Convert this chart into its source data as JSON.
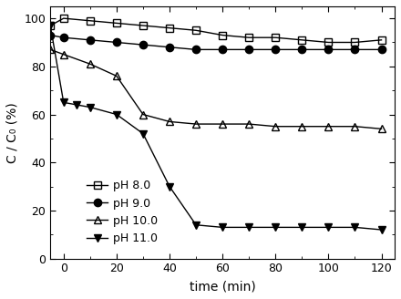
{
  "title": "",
  "xlabel": "time (min)",
  "ylabel": "C / C₀ (%)",
  "xlim": [
    -5,
    125
  ],
  "ylim": [
    0,
    105
  ],
  "xticks": [
    0,
    20,
    40,
    60,
    80,
    100,
    120
  ],
  "yticks": [
    0,
    20,
    40,
    60,
    80,
    100
  ],
  "series": [
    {
      "label": "pH 8.0",
      "marker": "s",
      "fillstyle": "none",
      "color": "black",
      "markersize": 6,
      "linewidth": 1.0,
      "x": [
        -5,
        0,
        10,
        20,
        30,
        40,
        50,
        60,
        70,
        80,
        90,
        100,
        110,
        120
      ],
      "y": [
        97,
        100,
        99,
        98,
        97,
        96,
        95,
        93,
        92,
        92,
        91,
        90,
        90,
        91
      ]
    },
    {
      "label": "pH 9.0",
      "marker": "o",
      "fillstyle": "full",
      "color": "black",
      "markersize": 6,
      "linewidth": 1.0,
      "x": [
        -5,
        0,
        10,
        20,
        30,
        40,
        50,
        60,
        70,
        80,
        90,
        100,
        110,
        120
      ],
      "y": [
        93,
        92,
        91,
        90,
        89,
        88,
        87,
        87,
        87,
        87,
        87,
        87,
        87,
        87
      ]
    },
    {
      "label": "pH 10.0",
      "marker": "^",
      "fillstyle": "none",
      "color": "black",
      "markersize": 6,
      "linewidth": 1.0,
      "x": [
        -5,
        0,
        10,
        20,
        30,
        40,
        50,
        60,
        70,
        80,
        90,
        100,
        110,
        120
      ],
      "y": [
        87,
        85,
        81,
        76,
        60,
        57,
        56,
        56,
        56,
        55,
        55,
        55,
        55,
        54
      ]
    },
    {
      "label": "pH 11.0",
      "marker": "v",
      "fillstyle": "full",
      "color": "black",
      "markersize": 6,
      "linewidth": 1.0,
      "x": [
        -5,
        0,
        5,
        10,
        20,
        30,
        40,
        50,
        60,
        70,
        80,
        90,
        100,
        110,
        120
      ],
      "y": [
        97,
        65,
        64,
        63,
        60,
        52,
        30,
        14,
        13,
        13,
        13,
        13,
        13,
        13,
        12
      ]
    }
  ],
  "legend_loc": "lower left",
  "legend_fontsize": 9,
  "bg_color": "#ffffff"
}
